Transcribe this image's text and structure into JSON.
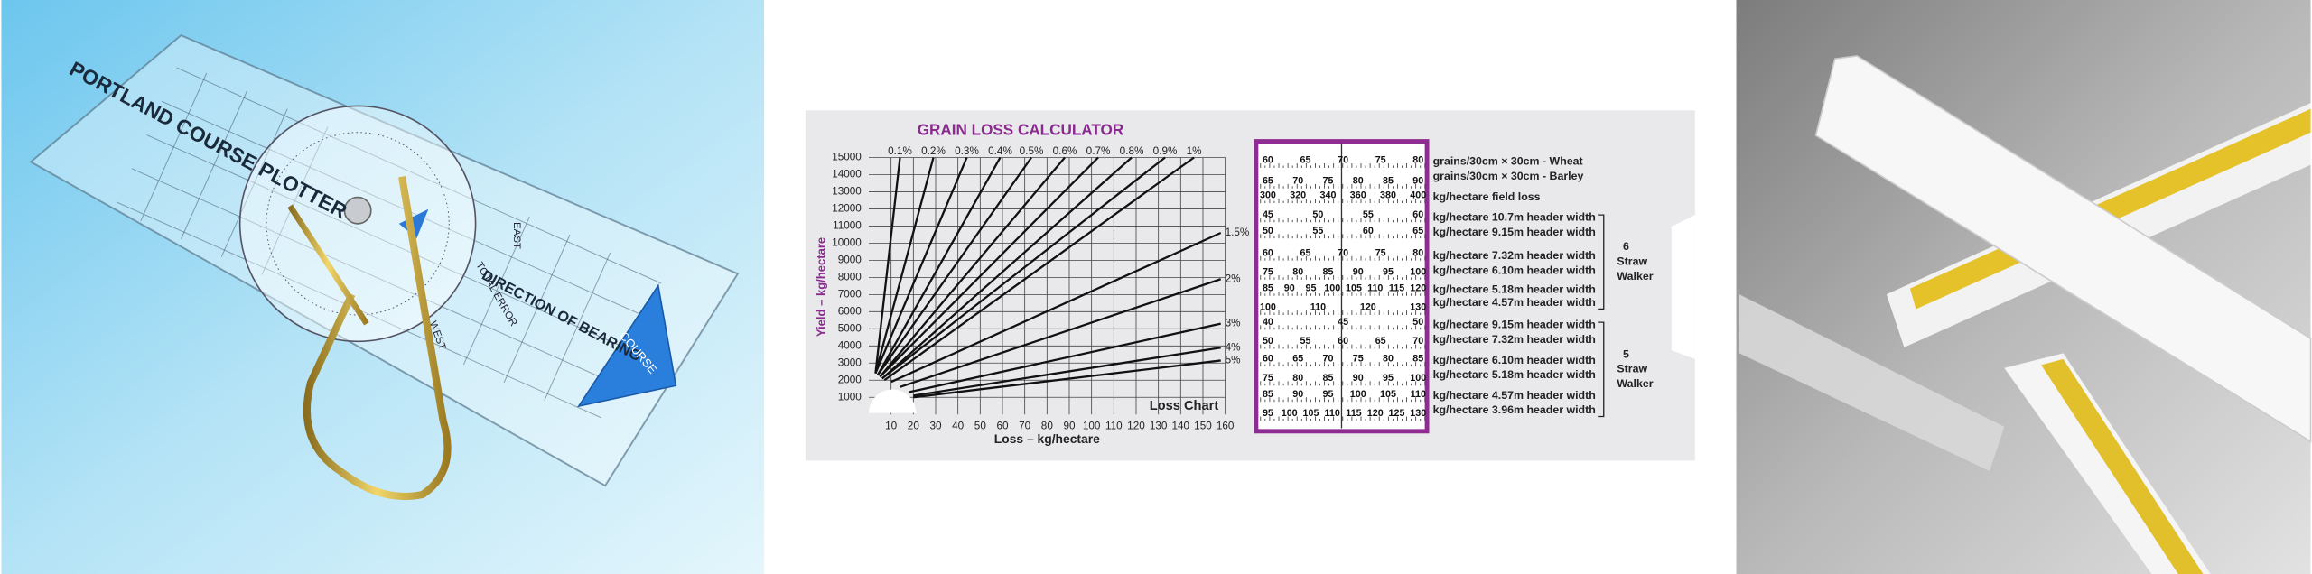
{
  "left_photo": {
    "title": "PORTLAND COURSE PLOTTER",
    "direction": "DIRECTION OF BEARING",
    "course": "COURSE",
    "east": "EAST",
    "west": "WEST",
    "error": "TOTAL ERROR"
  },
  "chart_data": {
    "type": "line",
    "title": "GRAIN LOSS CALCULATOR",
    "y_label": "Yield – kg/hectare",
    "x_label": "Loss – kg/hectare",
    "annotation": "Loss Chart",
    "xlim": [
      0,
      160
    ],
    "xticks": [
      10,
      20,
      30,
      40,
      50,
      60,
      70,
      80,
      90,
      100,
      110,
      120,
      130,
      140,
      150,
      160
    ],
    "ylim": [
      0,
      15000
    ],
    "yticks": [
      1000,
      2000,
      3000,
      4000,
      5000,
      6000,
      7000,
      8000,
      9000,
      10000,
      11000,
      12000,
      13000,
      14000,
      15000
    ],
    "grid": true,
    "color": "#111111",
    "series": [
      {
        "name": "0.1%",
        "x": [
          3,
          14
        ],
        "values": [
          2400,
          15000
        ]
      },
      {
        "name": "0.2%",
        "x": [
          3,
          29
        ],
        "values": [
          2400,
          15000
        ]
      },
      {
        "name": "0.3%",
        "x": [
          3,
          44
        ],
        "values": [
          2400,
          15000
        ]
      },
      {
        "name": "0.4%",
        "x": [
          4,
          59
        ],
        "values": [
          2300,
          15000
        ]
      },
      {
        "name": "0.5%",
        "x": [
          4,
          73
        ],
        "values": [
          2300,
          15000
        ]
      },
      {
        "name": "0.6%",
        "x": [
          5,
          88
        ],
        "values": [
          2200,
          15000
        ]
      },
      {
        "name": "0.7%",
        "x": [
          5,
          103
        ],
        "values": [
          2200,
          15000
        ]
      },
      {
        "name": "0.8%",
        "x": [
          6,
          118
        ],
        "values": [
          2100,
          15000
        ]
      },
      {
        "name": "0.9%",
        "x": [
          6,
          133
        ],
        "values": [
          2100,
          15000
        ]
      },
      {
        "name": "1%",
        "x": [
          7,
          146
        ],
        "values": [
          2000,
          15000
        ]
      },
      {
        "name": "1.5%",
        "x": [
          10,
          158
        ],
        "values": [
          1900,
          10600
        ]
      },
      {
        "name": "2%",
        "x": [
          14,
          158
        ],
        "values": [
          1600,
          7900
        ]
      },
      {
        "name": "3%",
        "x": [
          18,
          158
        ],
        "values": [
          1300,
          5300
        ]
      },
      {
        "name": "4%",
        "x": [
          20,
          158
        ],
        "values": [
          1100,
          3900
        ]
      },
      {
        "name": "5%",
        "x": [
          20,
          158
        ],
        "values": [
          1000,
          3150
        ]
      }
    ]
  },
  "scale_table": {
    "scales": [
      [
        60,
        65,
        70,
        75,
        80
      ],
      [
        65,
        70,
        75,
        80,
        85,
        90
      ],
      [
        300,
        320,
        340,
        360,
        380,
        400
      ],
      [
        45,
        50,
        55,
        60
      ],
      [
        50,
        55,
        60,
        65
      ],
      [
        60,
        65,
        70,
        75,
        80
      ],
      [
        75,
        80,
        85,
        90,
        95,
        100
      ],
      [
        85,
        90,
        95,
        100,
        105,
        110,
        115,
        120
      ],
      [
        100,
        110,
        120,
        130
      ],
      [
        40,
        45,
        50
      ],
      [
        50,
        55,
        60,
        65,
        70
      ],
      [
        60,
        65,
        70,
        75,
        80,
        85
      ],
      [
        75,
        80,
        85,
        90,
        95,
        100
      ],
      [
        85,
        90,
        95,
        100,
        105,
        110
      ],
      [
        95,
        100,
        105,
        110,
        115,
        120,
        125,
        130
      ]
    ],
    "labels": [
      "grains/30cm × 30cm - Wheat",
      "grains/30cm × 30cm - Barley",
      "kg/hectare field loss",
      "kg/hectare 10.7m header width",
      "kg/hectare 9.15m header width",
      "kg/hectare 7.32m header width",
      "kg/hectare 6.10m header width",
      "kg/hectare 5.18m header width",
      "kg/hectare 4.57m header width",
      "kg/hectare 9.15m header width",
      "kg/hectare 7.32m header width",
      "kg/hectare 6.10m header width",
      "kg/hectare 5.18m header width",
      "kg/hectare 4.57m header width",
      "kg/hectare 3.96m header width"
    ],
    "groups": [
      {
        "lines": [
          "6",
          "Straw",
          "Walker"
        ]
      },
      {
        "lines": [
          "5",
          "Straw",
          "Walker"
        ]
      }
    ]
  }
}
